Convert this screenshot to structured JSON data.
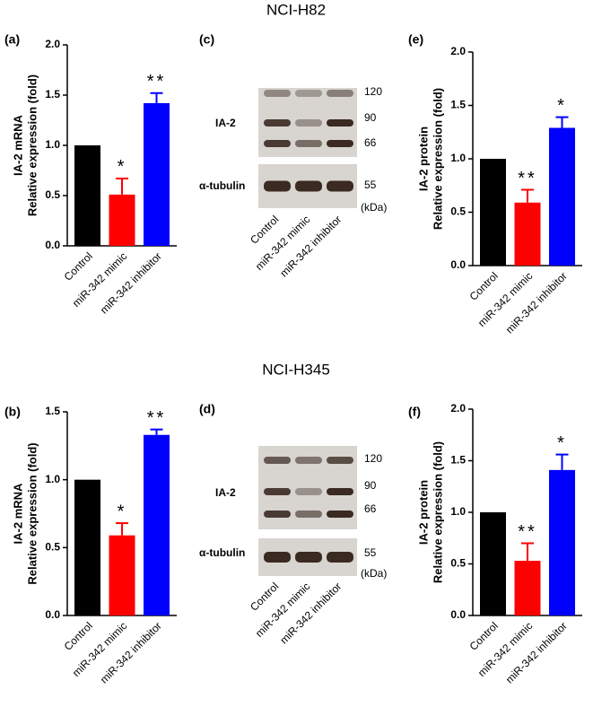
{
  "headers": [
    "NCI-H82",
    "NCI-H345"
  ],
  "chart_data": [
    {
      "type": "bar",
      "panel": "(a)",
      "ylabel": [
        "IA-2 mRNA",
        "Relative expression (fold)"
      ],
      "categories": [
        "Control",
        "miR-342 mimic",
        "miR-342 inhibitor"
      ],
      "values": [
        1.0,
        0.51,
        1.42
      ],
      "errors": [
        null,
        0.16,
        0.1
      ],
      "annotations": [
        null,
        "*",
        "**"
      ],
      "colors": [
        "#000000",
        "#ff0000",
        "#0000ff"
      ],
      "ylim": [
        0,
        2
      ],
      "yticks": [
        {
          "value": 0,
          "label": "0.0"
        },
        {
          "value": 0.5,
          "label": "0.5"
        },
        {
          "value": 1,
          "label": "1.0"
        },
        {
          "value": 1.5,
          "label": "1.5"
        },
        {
          "value": 2,
          "label": "2.0"
        }
      ]
    },
    {
      "type": "bar",
      "panel": "(e)",
      "ylabel": [
        "IA-2 protein",
        "Relative expression (fold)"
      ],
      "categories": [
        "Control",
        "miR-342 mimic",
        "miR-342 inhibitor"
      ],
      "values": [
        1.0,
        0.59,
        1.29
      ],
      "errors": [
        null,
        0.12,
        0.1
      ],
      "annotations": [
        null,
        "**",
        "*"
      ],
      "colors": [
        "#000000",
        "#ff0000",
        "#0000ff"
      ],
      "ylim": [
        0,
        2
      ],
      "yticks": [
        {
          "value": 0,
          "label": "0.0"
        },
        {
          "value": 0.5,
          "label": "0.5"
        },
        {
          "value": 1,
          "label": "1.0"
        },
        {
          "value": 1.5,
          "label": "1.5"
        },
        {
          "value": 2,
          "label": "2.0"
        }
      ]
    },
    {
      "type": "bar",
      "panel": "(b)",
      "ylabel": [
        "IA-2 mRNA",
        "Relative expression (fold)"
      ],
      "categories": [
        "Control",
        "miR-342 mimic",
        "miR-342 inhibitor"
      ],
      "values": [
        1.0,
        0.59,
        1.33
      ],
      "errors": [
        null,
        0.09,
        0.04
      ],
      "annotations": [
        null,
        "*",
        "**"
      ],
      "colors": [
        "#000000",
        "#ff0000",
        "#0000ff"
      ],
      "ylim": [
        0,
        1.5
      ],
      "yticks": [
        {
          "value": 0,
          "label": "0.0"
        },
        {
          "value": 0.5,
          "label": "0.5"
        },
        {
          "value": 1,
          "label": "1.0"
        },
        1.5
      ]
    },
    {
      "type": "bar",
      "panel": "(f)",
      "ylabel": [
        "IA-2 protein",
        "Relative expression (fold)"
      ],
      "categories": [
        "Control",
        "miR-342 mimic",
        "miR-342 inhibitor"
      ],
      "values": [
        1.0,
        0.53,
        1.41
      ],
      "errors": [
        null,
        0.17,
        0.15
      ],
      "annotations": [
        null,
        "**",
        "*"
      ],
      "colors": [
        "#000000",
        "#ff0000",
        "#0000ff"
      ],
      "ylim": [
        0,
        2
      ],
      "yticks": [
        {
          "value": 0,
          "label": "0.0"
        },
        {
          "value": 0.5,
          "label": "0.5"
        },
        {
          "value": 1,
          "label": "1.0"
        },
        {
          "value": 1.5,
          "label": "1.5"
        },
        {
          "value": 2,
          "label": "2.0"
        }
      ]
    }
  ],
  "blots": [
    {
      "panel": "(c)",
      "rows": [
        "IA-2",
        "α-tubulin"
      ],
      "markers": [
        "120",
        "90",
        "66",
        "55"
      ],
      "unit": "(kDa)",
      "categories": [
        "Control",
        "miR-342 mimic",
        "miR-342 inhibitor"
      ]
    },
    {
      "panel": "(d)",
      "rows": [
        "IA-2",
        "α-tubulin"
      ],
      "markers": [
        "120",
        "90",
        "66",
        "55"
      ],
      "unit": "(kDa)",
      "categories": [
        "Control",
        "miR-342 mimic",
        "miR-342 inhibitor"
      ]
    }
  ]
}
